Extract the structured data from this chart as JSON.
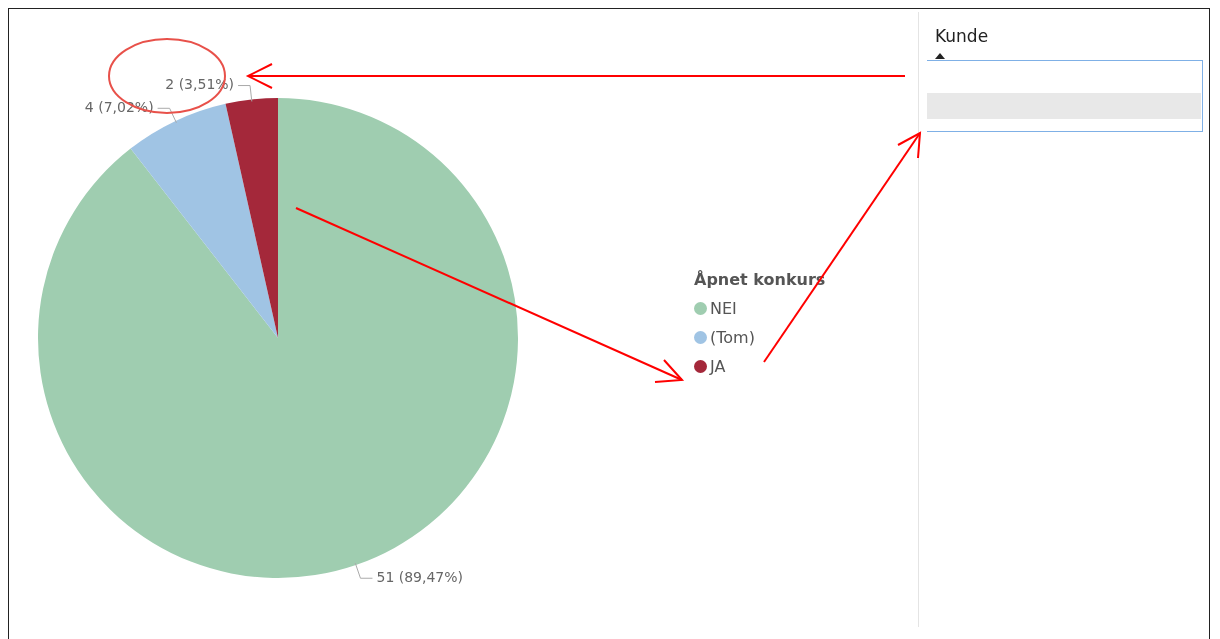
{
  "chart_data": {
    "type": "pie",
    "legend_title": "Åpnet konkurs",
    "legend": "right",
    "categories": [
      "NEI",
      "(Tom)",
      "JA"
    ],
    "values": [
      51,
      4,
      2
    ],
    "colors": [
      "#9fcdb0",
      "#a0c4e4",
      "#a4283a"
    ],
    "value_labels": [
      "51 (89,47%)",
      "4 (7,02%)",
      "2 (3,51%)"
    ],
    "annotations": [
      "Kunde"
    ]
  }
}
